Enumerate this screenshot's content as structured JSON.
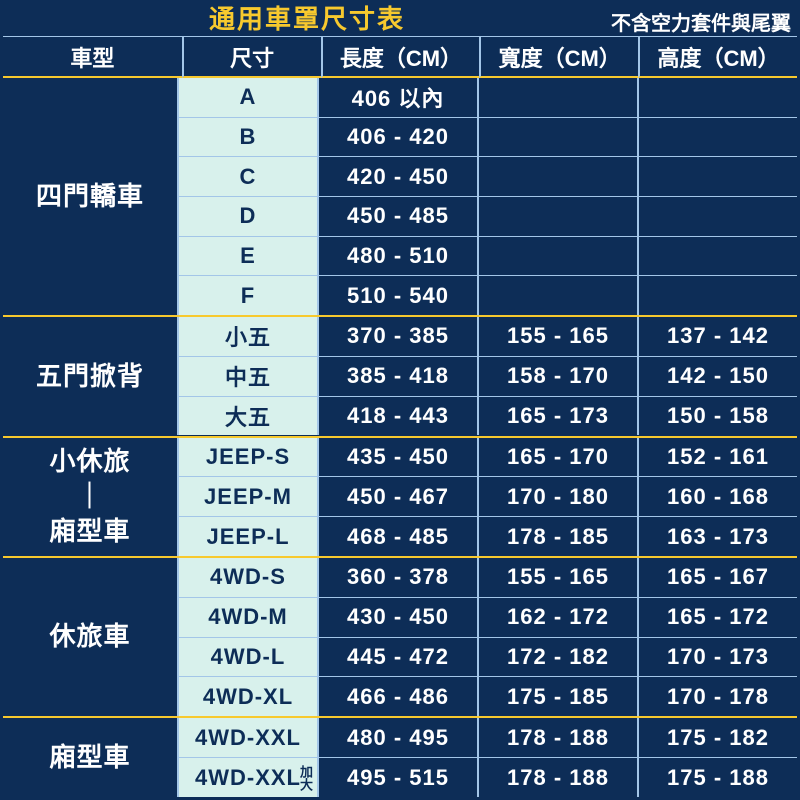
{
  "colors": {
    "bg_dark": "#0d2d57",
    "accent_yellow": "#f7c92e",
    "line_blue": "#a3c6e8",
    "size_bg": "#d8f1ec",
    "white": "#ffffff"
  },
  "typography": {
    "title_fontsize": 26,
    "note_fontsize": 20,
    "header_fontsize": 22,
    "type_fontsize": 26,
    "cell_fontsize": 22
  },
  "layout": {
    "col_widths": {
      "type": 180,
      "size": 140,
      "length": 160,
      "width": 160,
      "height": 160
    },
    "total_width": 800,
    "total_height": 800
  },
  "title": "通用車罩尺寸表",
  "subtitle_note": "不含空力套件與尾翼",
  "columns": {
    "type": "車型",
    "size": "尺寸",
    "length": "長度（CM）",
    "width": "寬度（CM）",
    "height": "高度（CM）"
  },
  "groups": [
    {
      "type_label": "四門轎車",
      "rows": [
        {
          "size": "A",
          "length": "406 以內",
          "width": "",
          "height": ""
        },
        {
          "size": "B",
          "length": "406 - 420",
          "width": "",
          "height": ""
        },
        {
          "size": "C",
          "length": "420 - 450",
          "width": "",
          "height": ""
        },
        {
          "size": "D",
          "length": "450 - 485",
          "width": "",
          "height": ""
        },
        {
          "size": "E",
          "length": "480 - 510",
          "width": "",
          "height": ""
        },
        {
          "size": "F",
          "length": "510 - 540",
          "width": "",
          "height": ""
        }
      ]
    },
    {
      "type_label": "五門掀背",
      "rows": [
        {
          "size": "小五",
          "length": "370 - 385",
          "width": "155 - 165",
          "height": "137 - 142"
        },
        {
          "size": "中五",
          "length": "385 - 418",
          "width": "158 - 170",
          "height": "142 - 150"
        },
        {
          "size": "大五",
          "length": "418 - 443",
          "width": "165 - 173",
          "height": "150 - 158"
        }
      ]
    },
    {
      "type_label": "小休旅\n｜\n廂型車",
      "rows": [
        {
          "size": "JEEP-S",
          "length": "435 - 450",
          "width": "165 - 170",
          "height": "152 - 161"
        },
        {
          "size": "JEEP-M",
          "length": "450 - 467",
          "width": "170 - 180",
          "height": "160 - 168"
        },
        {
          "size": "JEEP-L",
          "length": "468 - 485",
          "width": "178 - 185",
          "height": "163 - 173"
        }
      ]
    },
    {
      "type_label": "休旅車",
      "rows": [
        {
          "size": "4WD-S",
          "length": "360 - 378",
          "width": "155 - 165",
          "height": "165 - 167"
        },
        {
          "size": "4WD-M",
          "length": "430 - 450",
          "width": "162 - 172",
          "height": "165 - 172"
        },
        {
          "size": "4WD-L",
          "length": "445 - 472",
          "width": "172 - 182",
          "height": "170 - 173"
        },
        {
          "size": "4WD-XL",
          "length": "466 - 486",
          "width": "175 - 185",
          "height": "170 - 178"
        }
      ]
    },
    {
      "type_label": "廂型車",
      "rows": [
        {
          "size": "4WD-XXL",
          "length": "480 - 495",
          "width": "178 - 188",
          "height": "175 - 182"
        },
        {
          "size": "4WD-XXL",
          "size_suffix": "加大",
          "length": "495 - 515",
          "width": "178 - 188",
          "height": "175 - 188"
        }
      ]
    }
  ]
}
